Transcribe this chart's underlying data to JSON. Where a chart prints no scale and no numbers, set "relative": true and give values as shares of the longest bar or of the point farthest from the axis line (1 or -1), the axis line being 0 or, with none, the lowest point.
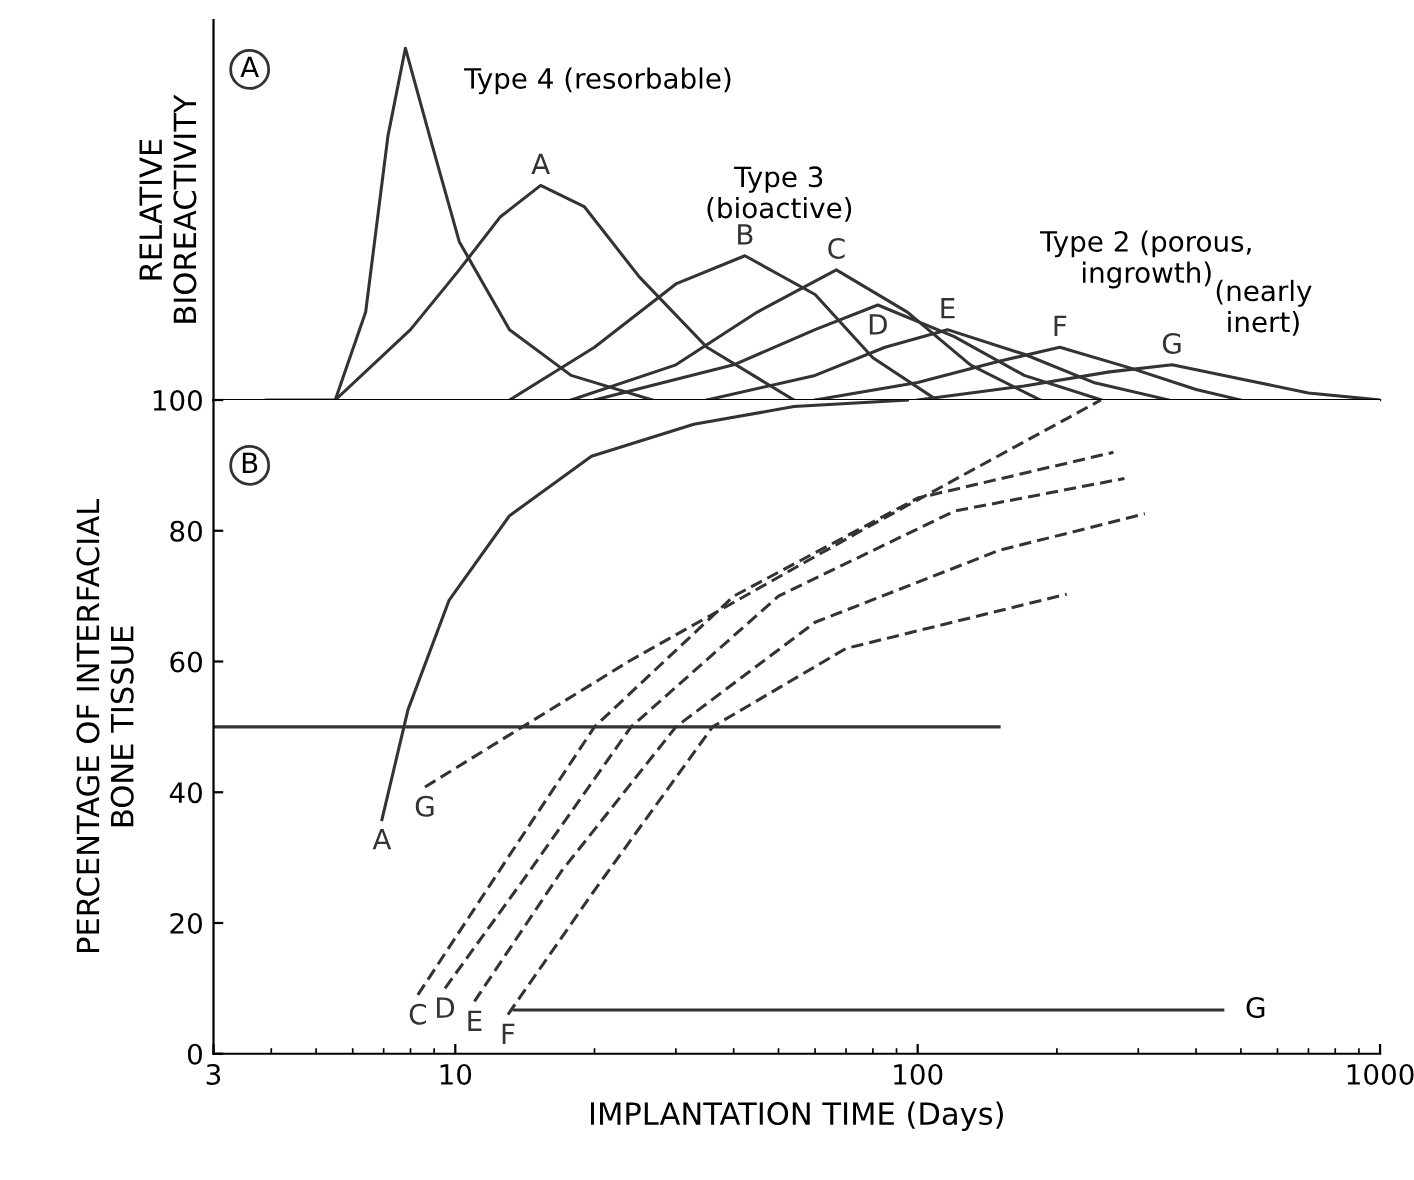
{
  "chart_data": [
    {
      "type": "line",
      "relative": true,
      "ylabel": "RELATIVE\nBIOREACTIVITY",
      "log": "x",
      "xlim": [
        3,
        1000
      ],
      "grid": false,
      "legend": false,
      "marker": "none",
      "annotations": [
        "A",
        "Type 4 (resorbable)",
        "Type 3\n(bioactive)",
        "Type 2 (porous,\ningrowth)",
        "(nearly\ninert)"
      ],
      "series": [
        {
          "color": "#333333",
          "line_style": "solid",
          "x": [
            3.9,
            5.5,
            6.4,
            7.15,
            7.8,
            8.8,
            10.2,
            13.1,
            17.8,
            26.7
          ],
          "values": [
            0,
            0,
            0.25,
            0.75,
            1.0,
            0.75,
            0.45,
            0.2,
            0.07,
            0
          ]
        },
        {
          "name": "A",
          "color": "#333333",
          "line_style": "solid",
          "x": [
            5.5,
            8,
            10.2,
            12.5,
            15.3,
            19,
            25,
            35,
            54
          ],
          "values": [
            0,
            0.2,
            0.37,
            0.52,
            0.61,
            0.55,
            0.35,
            0.15,
            0
          ]
        },
        {
          "name": "B",
          "color": "#333333",
          "line_style": "solid",
          "x": [
            13.1,
            20,
            30,
            42.3,
            60,
            80,
            110
          ],
          "values": [
            0,
            0.15,
            0.33,
            0.41,
            0.3,
            0.12,
            0
          ]
        },
        {
          "name": "C",
          "color": "#333333",
          "line_style": "solid",
          "x": [
            17.8,
            30,
            45,
            66.7,
            95,
            130,
            184
          ],
          "values": [
            0,
            0.1,
            0.25,
            0.37,
            0.25,
            0.1,
            0
          ]
        },
        {
          "name": "D",
          "color": "#333333",
          "line_style": "solid",
          "x": [
            20,
            40,
            60,
            82,
            120,
            170,
            250
          ],
          "values": [
            0,
            0.1,
            0.2,
            0.27,
            0.18,
            0.07,
            0
          ]
        },
        {
          "name": "E",
          "color": "#333333",
          "line_style": "solid",
          "x": [
            35,
            60,
            85,
            116,
            170,
            240,
            350
          ],
          "values": [
            0,
            0.07,
            0.15,
            0.2,
            0.13,
            0.05,
            0
          ]
        },
        {
          "name": "F",
          "color": "#333333",
          "line_style": "solid",
          "x": [
            60,
            100,
            150,
            203,
            290,
            400,
            500
          ],
          "values": [
            0,
            0.05,
            0.11,
            0.15,
            0.09,
            0.03,
            0
          ]
        },
        {
          "name": "G",
          "color": "#333333",
          "line_style": "solid",
          "x": [
            100,
            170,
            260,
            355,
            500,
            700,
            1000
          ],
          "values": [
            0,
            0.04,
            0.08,
            0.1,
            0.06,
            0.02,
            0
          ]
        }
      ]
    },
    {
      "type": "line",
      "ylabel": "PERCENTAGE OF INTERFACIAL\nBONE TISSUE",
      "xlabel": "IMPLANTATION TIME (Days)",
      "log": "x",
      "xlim": [
        3,
        1000
      ],
      "xticks": [
        3,
        10,
        100,
        1000
      ],
      "ylim": [
        0,
        100
      ],
      "yticks": [
        0,
        20,
        40,
        60,
        80,
        100
      ],
      "grid": false,
      "legend": false,
      "marker": "none",
      "annotations": [
        "B",
        {
          "text": "G",
          "x": 457,
          "y": 6.7
        }
      ],
      "series": [
        {
          "name": "A",
          "color": "#333333",
          "line_style": "solid",
          "x": [
            6.94,
            7.9,
            9.7,
            13.1,
            19.7,
            32.8,
            54,
            95
          ],
          "values": [
            35.8,
            52.6,
            69.4,
            82.3,
            91.4,
            96.3,
            99,
            100
          ]
        },
        {
          "name": "G",
          "color": "#333333",
          "line_style": "dashed",
          "x": [
            8.6,
            23.7,
            75.4,
            249
          ],
          "values": [
            40.8,
            60,
            80,
            100
          ]
        },
        {
          "name": "C",
          "color": "#333333",
          "line_style": "dashed",
          "x": [
            8.3,
            13,
            20,
            40,
            100,
            265
          ],
          "values": [
            9,
            30,
            50,
            70,
            85,
            92
          ]
        },
        {
          "name": "D",
          "color": "#333333",
          "line_style": "dashed",
          "x": [
            9.5,
            14.5,
            24,
            50,
            120,
            280
          ],
          "values": [
            10,
            28,
            50,
            70,
            83,
            88
          ]
        },
        {
          "name": "E",
          "color": "#333333",
          "line_style": "dashed",
          "x": [
            11,
            17,
            30,
            60,
            150,
            310
          ],
          "values": [
            8,
            28,
            50,
            66,
            77,
            82.6
          ]
        },
        {
          "name": "F",
          "color": "#333333",
          "line_style": "dashed",
          "x": [
            13,
            20,
            36,
            70,
            210
          ],
          "values": [
            6,
            25,
            50,
            62,
            70.3
          ]
        },
        {
          "color": "#333333",
          "line_style": "solid",
          "x": [
            3,
            150
          ],
          "values": [
            50,
            50
          ]
        },
        {
          "color": "#333333",
          "line_style": "solid",
          "x": [
            13.4,
            457
          ],
          "values": [
            6.7,
            6.7
          ]
        }
      ]
    }
  ]
}
